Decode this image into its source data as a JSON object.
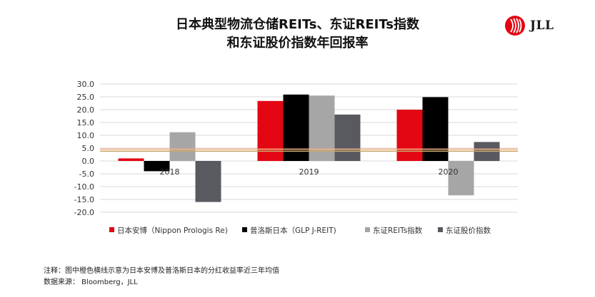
{
  "title_line1": "日本典型物流仓储REITs、东证REITs指数",
  "title_line2": "和东证股价指数年回报率",
  "logo_text": "JLL",
  "note": "注释：图中橙色横线示意为日本安博及普洛斯日本的分红收益率近三年均值",
  "source": "数据来源： Bloomberg，JLL",
  "colors": {
    "series": [
      "#e30613",
      "#000000",
      "#a6a6a6",
      "#595960"
    ],
    "grid": "#d9d9d9",
    "ref_lines": [
      "#f4b183",
      "#c8a96a"
    ]
  },
  "chart_data": {
    "type": "bar",
    "categories": [
      "2018",
      "2019",
      "2020"
    ],
    "series": [
      {
        "name": "日本安博（Nippon Prologis Re)",
        "values": [
          1.0,
          23.4,
          20.0
        ]
      },
      {
        "name": "普洛斯日本（GLP J-REIT)",
        "values": [
          -4.0,
          25.9,
          24.9
        ]
      },
      {
        "name": "东证REITs指数",
        "values": [
          11.2,
          25.5,
          -13.4
        ]
      },
      {
        "name": "东证股价指数",
        "values": [
          -16.0,
          18.1,
          7.4
        ]
      }
    ],
    "reference_lines": [
      4.6,
      3.8
    ],
    "ylim": [
      -20,
      30
    ],
    "yticks": [
      "-20.0",
      "-15.0",
      "-10.0",
      "-5.0",
      "0.0",
      "5.0",
      "10.0",
      "15.0",
      "20.0",
      "25.0",
      "30.0"
    ],
    "ytick_values": [
      -20,
      -15,
      -10,
      -5,
      0,
      5,
      10,
      15,
      20,
      25,
      30
    ],
    "grid": true,
    "legend_position": "bottom"
  }
}
